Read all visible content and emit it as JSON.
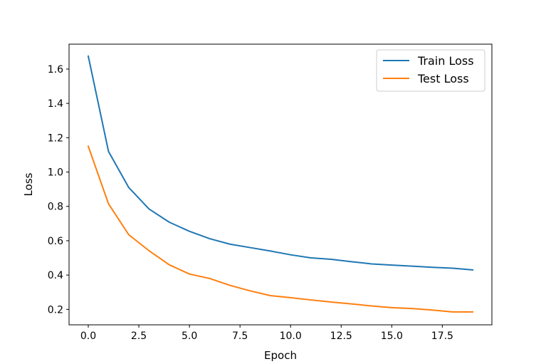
{
  "chart_data": {
    "type": "line",
    "title": "",
    "xlabel": "Epoch",
    "ylabel": "Loss",
    "xlim": [
      -0.95,
      19.95
    ],
    "ylim": [
      0.11,
      1.745
    ],
    "xticks": [
      0.0,
      2.5,
      5.0,
      7.5,
      10.0,
      12.5,
      15.0,
      17.5
    ],
    "xtick_labels": [
      "0.0",
      "2.5",
      "5.0",
      "7.5",
      "10.0",
      "12.5",
      "15.0",
      "17.5"
    ],
    "yticks": [
      0.2,
      0.4,
      0.6,
      0.8,
      1.0,
      1.2,
      1.4,
      1.6
    ],
    "ytick_labels": [
      "0.2",
      "0.4",
      "0.6",
      "0.8",
      "1.0",
      "1.2",
      "1.4",
      "1.6"
    ],
    "grid": false,
    "legend_position": "top-right",
    "x": [
      0,
      1,
      2,
      3,
      4,
      5,
      6,
      7,
      8,
      9,
      10,
      11,
      12,
      13,
      14,
      15,
      16,
      17,
      18,
      19
    ],
    "series": [
      {
        "name": "Train Loss",
        "color": "#1f77b4",
        "values": [
          1.675,
          1.12,
          0.91,
          0.785,
          0.708,
          0.655,
          0.612,
          0.58,
          0.56,
          0.54,
          0.518,
          0.5,
          0.492,
          0.478,
          0.465,
          0.458,
          0.452,
          0.445,
          0.44,
          0.43
        ]
      },
      {
        "name": "Test Loss",
        "color": "#ff7f0e",
        "values": [
          1.15,
          0.815,
          0.635,
          0.542,
          0.46,
          0.406,
          0.38,
          0.34,
          0.308,
          0.28,
          0.268,
          0.255,
          0.243,
          0.232,
          0.22,
          0.21,
          0.205,
          0.196,
          0.185,
          0.185
        ]
      }
    ]
  }
}
